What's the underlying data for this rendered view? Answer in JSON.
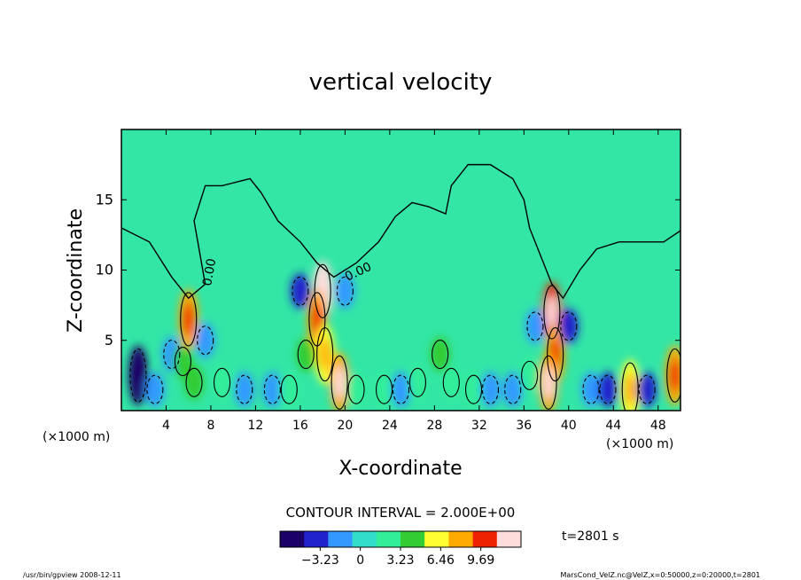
{
  "chart_data": {
    "type": "heatmap",
    "title": "vertical velocity",
    "xlabel": "X-coordinate",
    "ylabel": "Z-coordinate",
    "x_unit": "(×1000 m)",
    "y_unit": "(×1000 m)",
    "xlim": [
      0,
      50
    ],
    "ylim": [
      0,
      20
    ],
    "x_ticks": [
      4,
      8,
      12,
      16,
      20,
      24,
      28,
      32,
      36,
      40,
      44,
      48
    ],
    "y_ticks": [
      5,
      10,
      15
    ],
    "contour_interval": "CONTOUR INTERVAL = 2.000E+00",
    "zero_contour_label": "0.00",
    "time_label": "t=2801 s",
    "colorbar": {
      "range": [
        -6.46,
        12.92
      ],
      "tick_values": [
        -3.23,
        0,
        3.23,
        6.46,
        9.69
      ],
      "tick_labels": [
        "−3.23",
        "0",
        "3.23",
        "6.46",
        "9.69"
      ],
      "colors": [
        "#1a0066",
        "#2222cc",
        "#3399ff",
        "#33ddcc",
        "#33ee99",
        "#33cc33",
        "#ffff33",
        "#ffaa00",
        "#ee2200",
        "#ffdddd"
      ]
    },
    "cells": [
      {
        "x": 1.5,
        "z": 2.5,
        "w": -6.5
      },
      {
        "x": 3.0,
        "z": 1.5,
        "w": -2.5
      },
      {
        "x": 4.5,
        "z": 4.0,
        "w": -1.5
      },
      {
        "x": 5.5,
        "z": 3.5,
        "w": 4.0
      },
      {
        "x": 6.0,
        "z": 6.5,
        "w": 7.5
      },
      {
        "x": 6.5,
        "z": 2.0,
        "w": 5.0
      },
      {
        "x": 7.5,
        "z": 5.0,
        "w": -2.5
      },
      {
        "x": 9.0,
        "z": 2.0,
        "w": 2.0
      },
      {
        "x": 11.0,
        "z": 1.5,
        "w": -1.5
      },
      {
        "x": 13.5,
        "z": 1.5,
        "w": -1.0
      },
      {
        "x": 15.0,
        "z": 1.5,
        "w": 3.0
      },
      {
        "x": 16.5,
        "z": 4.0,
        "w": 3.5
      },
      {
        "x": 18.0,
        "z": 8.5,
        "w": 12.0
      },
      {
        "x": 17.5,
        "z": 6.5,
        "w": 8.0
      },
      {
        "x": 18.2,
        "z": 4.0,
        "w": 6.0
      },
      {
        "x": 19.5,
        "z": 2.0,
        "w": 9.0
      },
      {
        "x": 21.0,
        "z": 1.5,
        "w": 3.0
      },
      {
        "x": 16.0,
        "z": 8.5,
        "w": -3.0
      },
      {
        "x": 20.0,
        "z": 8.5,
        "w": -2.5
      },
      {
        "x": 23.5,
        "z": 1.5,
        "w": 2.0
      },
      {
        "x": 25.0,
        "z": 1.5,
        "w": -1.5
      },
      {
        "x": 26.5,
        "z": 2.0,
        "w": 2.0
      },
      {
        "x": 28.5,
        "z": 4.0,
        "w": 5.0
      },
      {
        "x": 29.5,
        "z": 2.0,
        "w": 3.0
      },
      {
        "x": 31.5,
        "z": 1.5,
        "w": 2.5
      },
      {
        "x": 33.0,
        "z": 1.5,
        "w": -1.5
      },
      {
        "x": 35.0,
        "z": 1.5,
        "w": -2.0
      },
      {
        "x": 36.5,
        "z": 2.5,
        "w": 3.0
      },
      {
        "x": 38.5,
        "z": 7.0,
        "w": 10.0
      },
      {
        "x": 38.8,
        "z": 4.0,
        "w": 8.5
      },
      {
        "x": 38.2,
        "z": 2.0,
        "w": 9.0
      },
      {
        "x": 40.0,
        "z": 6.0,
        "w": -3.0
      },
      {
        "x": 37.0,
        "z": 6.0,
        "w": -2.0
      },
      {
        "x": 42.0,
        "z": 1.5,
        "w": -2.5
      },
      {
        "x": 43.5,
        "z": 1.5,
        "w": -3.5
      },
      {
        "x": 45.5,
        "z": 1.5,
        "w": 6.5
      },
      {
        "x": 47.0,
        "z": 1.5,
        "w": -3.0
      },
      {
        "x": 49.5,
        "z": 2.5,
        "w": 8.0
      }
    ],
    "zero_contour": [
      [
        0.0,
        13.0
      ],
      [
        2.5,
        12.0
      ],
      [
        4.5,
        9.5
      ],
      [
        6.0,
        8.0
      ],
      [
        7.5,
        9.0
      ],
      [
        6.5,
        13.5
      ],
      [
        7.5,
        16.0
      ],
      [
        9.0,
        16.0
      ],
      [
        11.5,
        16.5
      ],
      [
        12.5,
        15.5
      ],
      [
        14.0,
        13.5
      ],
      [
        16.0,
        12.0
      ],
      [
        17.5,
        10.5
      ],
      [
        19.0,
        9.5
      ],
      [
        21.0,
        10.5
      ],
      [
        23.0,
        12.0
      ],
      [
        24.5,
        13.8
      ],
      [
        26.0,
        14.8
      ],
      [
        27.5,
        14.5
      ],
      [
        29.0,
        14.0
      ],
      [
        29.5,
        16.0
      ],
      [
        31.0,
        17.5
      ],
      [
        33.0,
        17.5
      ],
      [
        35.0,
        16.5
      ],
      [
        36.0,
        15.0
      ],
      [
        36.5,
        13.0
      ],
      [
        37.5,
        11.0
      ],
      [
        38.5,
        9.0
      ],
      [
        39.5,
        8.0
      ],
      [
        41.0,
        10.0
      ],
      [
        42.5,
        11.5
      ],
      [
        44.5,
        12.0
      ],
      [
        46.5,
        12.0
      ],
      [
        48.5,
        12.0
      ],
      [
        50.0,
        12.8
      ]
    ]
  },
  "footer": {
    "left": "/usr/bin/gpview   2008-12-11",
    "right": "MarsCond_VelZ.nc@VelZ,x=0:50000,z=0:20000,t=2801"
  }
}
